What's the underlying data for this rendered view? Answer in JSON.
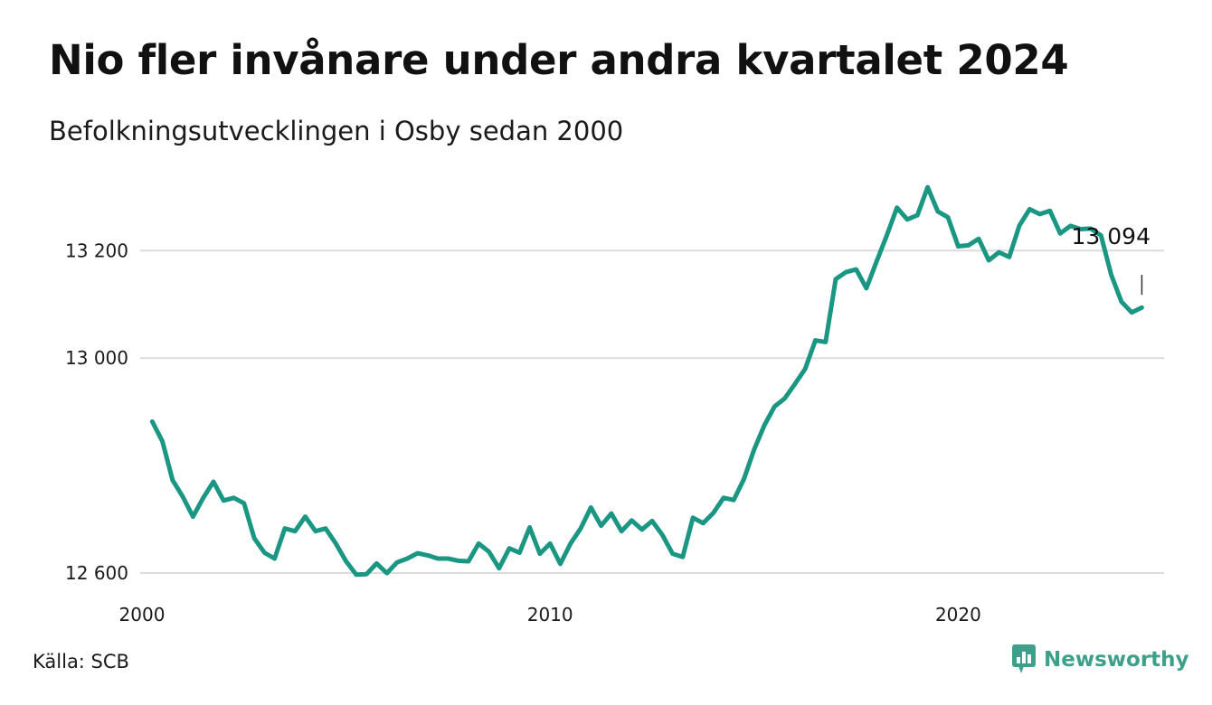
{
  "title": "Nio fler invånare under andra kvartalet 2024",
  "subtitle": "Befolkningsutvecklingen i Osby sedan 2000",
  "source": "Källa: SCB",
  "brand": "Newsworthy",
  "colors": {
    "line": "#1a9683",
    "grid": "#dcdcdc",
    "brand": "#3e9f8a"
  },
  "chart_data": {
    "type": "line",
    "title": "Nio fler invånare under andra kvartalet 2024",
    "subtitle": "Befolkningsutvecklingen i Osby sedan 2000",
    "xlabel": "",
    "ylabel": "",
    "xlim": [
      2000,
      2025
    ],
    "ylim": [
      12590,
      13330
    ],
    "y_ticks": [
      {
        "value": 12600,
        "label": "12 600"
      },
      {
        "value": 13000,
        "label": "13 000"
      },
      {
        "value": 13200,
        "label": "13 200"
      }
    ],
    "x_ticks": [
      {
        "value": 2000,
        "label": "2000"
      },
      {
        "value": 2010,
        "label": "2010"
      },
      {
        "value": 2020,
        "label": "2020"
      }
    ],
    "grid": "horizontal",
    "end_annotation": "13 094",
    "series": [
      {
        "x": [
          2000.25,
          2000.5,
          2000.75,
          2001,
          2001.25,
          2001.5,
          2001.75,
          2002,
          2002.25,
          2002.5,
          2002.75,
          2003,
          2003.25,
          2003.5,
          2003.75,
          2004,
          2004.25,
          2004.5,
          2004.75,
          2005,
          2005.25,
          2005.5,
          2005.75,
          2006,
          2006.25,
          2006.5,
          2006.75,
          2007,
          2007.25,
          2007.5,
          2007.75,
          2008,
          2008.25,
          2008.5,
          2008.75,
          2009,
          2009.25,
          2009.5,
          2009.75,
          2010,
          2010.25,
          2010.5,
          2010.75,
          2011,
          2011.25,
          2011.5,
          2011.75,
          2012,
          2012.25,
          2012.5,
          2012.75,
          2013,
          2013.25,
          2013.5,
          2013.75,
          2014,
          2014.25,
          2014.5,
          2014.75,
          2015,
          2015.25,
          2015.5,
          2015.75,
          2016,
          2016.25,
          2016.5,
          2016.75,
          2017,
          2017.25,
          2017.5,
          2017.75,
          2018,
          2018.25,
          2018.5,
          2018.75,
          2019,
          2019.25,
          2019.5,
          2019.75,
          2020,
          2020.25,
          2020.5,
          2020.75,
          2021,
          2021.25,
          2021.5,
          2021.75,
          2022,
          2022.25,
          2022.5,
          2022.75,
          2023,
          2023.25,
          2023.5,
          2023.75,
          2024,
          2024.25,
          2024.5
        ],
        "y": [
          12882,
          12845,
          12773,
          12742,
          12705,
          12740,
          12770,
          12735,
          12740,
          12730,
          12665,
          12638,
          12627,
          12683,
          12678,
          12705,
          12678,
          12683,
          12655,
          12622,
          12597,
          12598,
          12618,
          12600,
          12620,
          12627,
          12637,
          12633,
          12627,
          12627,
          12623,
          12622,
          12655,
          12640,
          12609,
          12646,
          12638,
          12685,
          12636,
          12655,
          12617,
          12655,
          12683,
          12722,
          12688,
          12711,
          12678,
          12698,
          12681,
          12697,
          12671,
          12636,
          12630,
          12703,
          12693,
          12712,
          12740,
          12736,
          12775,
          12830,
          12875,
          12910,
          12925,
          12952,
          12980,
          13033,
          13030,
          13147,
          13160,
          13165,
          13130,
          13180,
          13228,
          13280,
          13258,
          13266,
          13318,
          13273,
          13262,
          13208,
          13210,
          13222,
          13182,
          13197,
          13188,
          13247,
          13277,
          13268,
          13274,
          13232,
          13246,
          13240,
          13241,
          13228,
          13155,
          13105,
          13085,
          13094
        ]
      }
    ]
  }
}
